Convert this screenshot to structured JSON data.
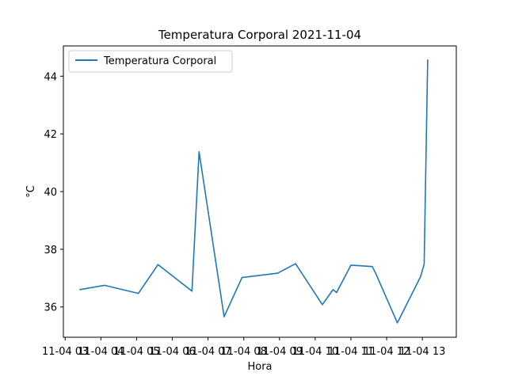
{
  "chart_data": {
    "type": "line",
    "title": "Temperatura Corporal 2021-11-04",
    "xlabel": "Hora",
    "ylabel": "°C",
    "x_tick_labels": [
      "11-04 03",
      "11-04 04",
      "11-04 05",
      "11-04 06",
      "11-04 07",
      "11-04 08",
      "11-04 09",
      "11-04 10",
      "11-04 11",
      "11-04 12",
      "11-04 13"
    ],
    "x_tick_hours": [
      3,
      4,
      5,
      6,
      7,
      8,
      9,
      10,
      11,
      12,
      13
    ],
    "y_ticks": [
      36,
      38,
      40,
      42,
      44
    ],
    "xlim": [
      2.95,
      13.95
    ],
    "ylim": [
      34.95,
      45.05
    ],
    "grid": false,
    "legend_position": "upper-left",
    "series": [
      {
        "name": "Temperatura Corporal",
        "color": "#1f77b4",
        "x": [
          3.4,
          4.1,
          5.05,
          5.6,
          6.55,
          6.75,
          7.45,
          7.95,
          8.95,
          9.45,
          10.2,
          10.5,
          10.6,
          11.0,
          11.6,
          11.7,
          12.3,
          12.95,
          13.05,
          13.15
        ],
        "y": [
          36.6,
          36.75,
          36.47,
          37.47,
          36.55,
          41.38,
          35.66,
          37.02,
          37.17,
          37.5,
          36.08,
          36.6,
          36.5,
          37.45,
          37.4,
          37.15,
          35.45,
          37.05,
          37.48,
          44.58
        ]
      }
    ]
  }
}
